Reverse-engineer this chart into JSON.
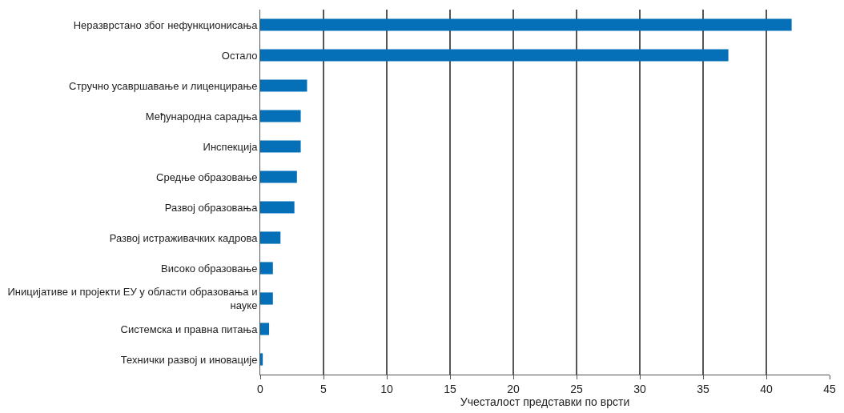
{
  "chart_data": {
    "type": "bar",
    "orientation": "horizontal",
    "xlabel": "Учесталост представки по врсти",
    "categories": [
      "Неразврстано због нефункционисања",
      "Остало",
      "Стручно усавршавање и лиценцирање",
      "Међународна сарадња",
      "Инспекција",
      "Средње образовање",
      "Развој образовања",
      "Развој истраживачких кадрова",
      "Високо образовање",
      "Иницијативе и пројекти ЕУ у области образовања и науке",
      "Системска и правна питања",
      "Технички развој и иновације"
    ],
    "values": [
      42.0,
      37.0,
      3.7,
      3.2,
      3.2,
      2.9,
      2.7,
      1.6,
      1.0,
      1.0,
      0.7,
      0.2
    ],
    "color": "#0570b8",
    "xlim": [
      0,
      45
    ],
    "xticks": [
      0,
      5,
      10,
      15,
      20,
      25,
      30,
      35,
      40,
      45
    ],
    "grid": "x"
  }
}
